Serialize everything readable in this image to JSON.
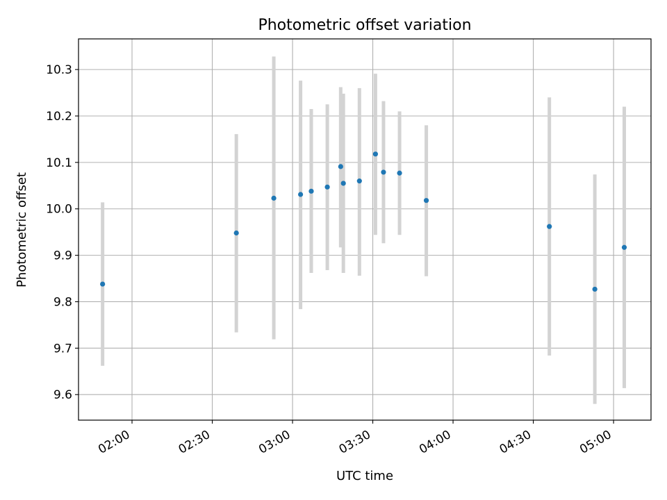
{
  "chart_data": {
    "type": "scatter",
    "title": "Photometric offset variation",
    "xlabel": "UTC time",
    "ylabel": "Photometric offset",
    "grid": true,
    "xlim": [
      "01:40",
      "05:14"
    ],
    "ylim": [
      9.545,
      10.366
    ],
    "x_ticks": [
      "02:00",
      "02:30",
      "03:00",
      "03:30",
      "04:00",
      "04:30",
      "05:00"
    ],
    "y_ticks": [
      9.6,
      9.7,
      9.8,
      9.9,
      10.0,
      10.1,
      10.2,
      10.3
    ],
    "y_tick_labels": [
      "9.6",
      "9.7",
      "9.8",
      "9.9",
      "10.0",
      "10.1",
      "10.2",
      "10.3"
    ],
    "colors": {
      "point": "#1f77b4",
      "errorbar": "#d3d3d3",
      "grid": "#b0b0b0"
    },
    "series": [
      {
        "points": [
          {
            "x": "01:49",
            "y": 9.838,
            "yerr_low": 9.662,
            "yerr_high": 10.014
          },
          {
            "x": "02:39",
            "y": 9.948,
            "yerr_low": 9.734,
            "yerr_high": 10.161
          },
          {
            "x": "02:53",
            "y": 10.023,
            "yerr_low": 9.719,
            "yerr_high": 10.328
          },
          {
            "x": "03:03",
            "y": 10.031,
            "yerr_low": 9.784,
            "yerr_high": 10.276
          },
          {
            "x": "03:07",
            "y": 10.038,
            "yerr_low": 9.862,
            "yerr_high": 10.215
          },
          {
            "x": "03:13",
            "y": 10.047,
            "yerr_low": 9.868,
            "yerr_high": 10.225
          },
          {
            "x": "03:18",
            "y": 10.091,
            "yerr_low": 9.917,
            "yerr_high": 10.262
          },
          {
            "x": "03:19",
            "y": 10.055,
            "yerr_low": 9.862,
            "yerr_high": 10.248
          },
          {
            "x": "03:25",
            "y": 10.06,
            "yerr_low": 9.856,
            "yerr_high": 10.26
          },
          {
            "x": "03:31",
            "y": 10.118,
            "yerr_low": 9.944,
            "yerr_high": 10.291
          },
          {
            "x": "03:34",
            "y": 10.079,
            "yerr_low": 9.926,
            "yerr_high": 10.232
          },
          {
            "x": "03:40",
            "y": 10.077,
            "yerr_low": 9.944,
            "yerr_high": 10.21
          },
          {
            "x": "03:50",
            "y": 10.018,
            "yerr_low": 9.855,
            "yerr_high": 10.18
          },
          {
            "x": "04:36",
            "y": 9.962,
            "yerr_low": 9.684,
            "yerr_high": 10.24
          },
          {
            "x": "04:53",
            "y": 9.827,
            "yerr_low": 9.58,
            "yerr_high": 10.074
          },
          {
            "x": "05:04",
            "y": 9.917,
            "yerr_low": 9.614,
            "yerr_high": 10.22
          }
        ]
      }
    ]
  }
}
